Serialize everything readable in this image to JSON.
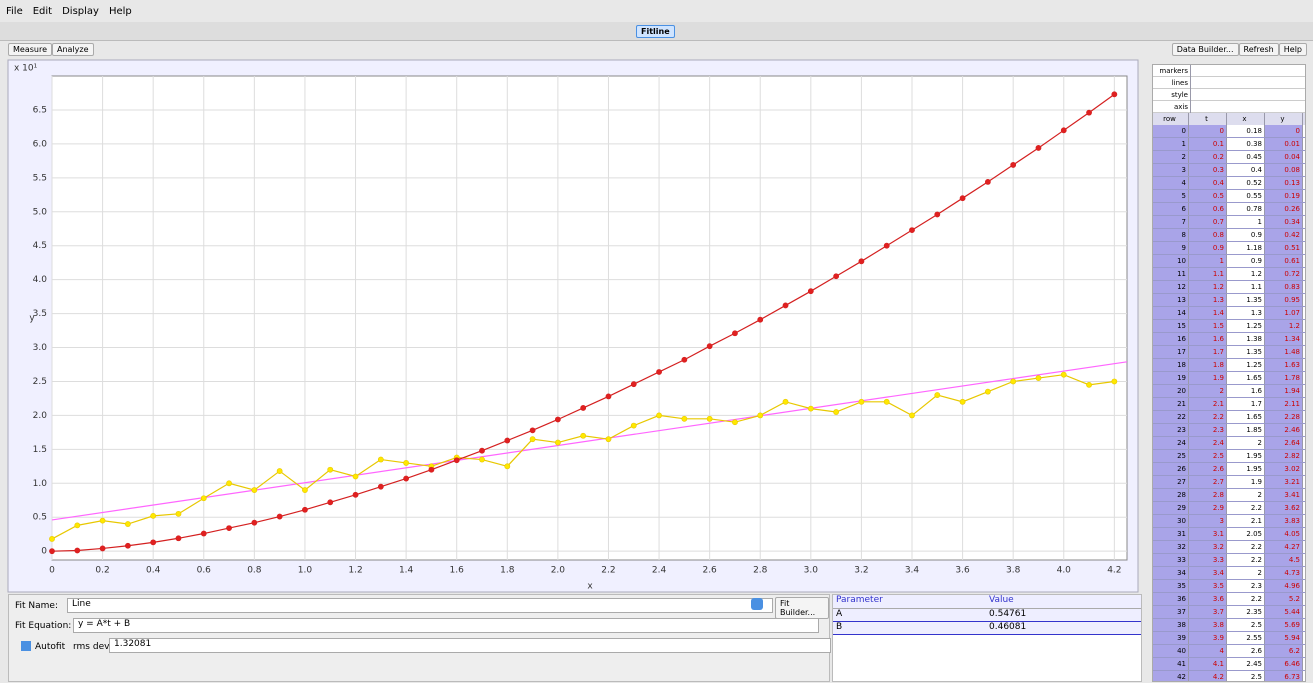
{
  "menu": [
    "File",
    "Edit",
    "Display",
    "Help"
  ],
  "tab": "Fitline",
  "toolbar": {
    "left": [
      "Measure",
      "Analyze"
    ],
    "right": [
      "Data Builder...",
      "Refresh",
      "Help"
    ]
  },
  "chart_data": {
    "type": "line",
    "xlabel": "x",
    "ylabel": "y",
    "exponent": "x 10¹",
    "xlim": [
      0,
      4.25
    ],
    "ylim": [
      -0.13,
      7.0
    ],
    "grid": true,
    "xticks": [
      0,
      0.2,
      0.4,
      0.6,
      0.8,
      {
        "value": 1,
        "label": "1.0"
      },
      1.2,
      1.4,
      1.6,
      1.8,
      {
        "value": 2,
        "label": "2.0"
      },
      2.2,
      2.4,
      2.6,
      2.8,
      {
        "value": 3,
        "label": "3.0"
      },
      3.2,
      3.4,
      3.6,
      3.8,
      {
        "value": 4,
        "label": "4.0"
      },
      4.2
    ],
    "yticks": [
      0,
      0.5,
      {
        "value": 1,
        "label": "1.0"
      },
      1.5,
      {
        "value": 2,
        "label": "2.0"
      },
      2.5,
      {
        "value": 3,
        "label": "3.0"
      },
      3.5,
      {
        "value": 4,
        "label": "4.0"
      },
      4.5,
      {
        "value": 5,
        "label": "5.0"
      },
      5.5,
      {
        "value": 6,
        "label": "6.0"
      },
      6.5
    ],
    "x": [
      0,
      0.1,
      0.2,
      0.3,
      0.4,
      0.5,
      0.6,
      0.7,
      0.8,
      0.9,
      1.0,
      1.1,
      1.2,
      1.3,
      1.4,
      1.5,
      1.6,
      1.7,
      1.8,
      1.9,
      2.0,
      2.1,
      2.2,
      2.3,
      2.4,
      2.5,
      2.6,
      2.7,
      2.8,
      2.9,
      3.0,
      3.1,
      3.2,
      3.3,
      3.4,
      3.5,
      3.6,
      3.7,
      3.8,
      3.9,
      4.0,
      4.1,
      4.2
    ],
    "series": [
      {
        "color": "#e8c800",
        "marker": "#ffe800",
        "values": [
          0.18,
          0.38,
          0.45,
          0.4,
          0.52,
          0.55,
          0.78,
          1.0,
          0.9,
          1.18,
          0.9,
          1.2,
          1.1,
          1.35,
          1.3,
          1.25,
          1.38,
          1.35,
          1.25,
          1.65,
          1.6,
          1.7,
          1.65,
          1.85,
          2.0,
          1.95,
          1.95,
          1.9,
          2.0,
          2.2,
          2.1,
          2.05,
          2.2,
          2.2,
          2.0,
          2.3,
          2.2,
          2.35,
          2.5,
          2.55,
          2.6,
          2.45,
          2.5
        ]
      },
      {
        "color": "#d42020",
        "marker": "#e02020",
        "values": [
          0,
          0.01,
          0.04,
          0.08,
          0.13,
          0.19,
          0.26,
          0.34,
          0.42,
          0.51,
          0.61,
          0.72,
          0.83,
          0.95,
          1.07,
          1.2,
          1.34,
          1.48,
          1.63,
          1.78,
          1.94,
          2.11,
          2.28,
          2.46,
          2.64,
          2.82,
          3.02,
          3.21,
          3.41,
          3.62,
          3.83,
          4.05,
          4.27,
          4.5,
          4.73,
          4.96,
          5.2,
          5.44,
          5.69,
          5.94,
          6.2,
          6.46,
          6.73
        ]
      }
    ],
    "fit_line": {
      "color": "#ff66ff",
      "x": [
        0,
        4.25
      ],
      "values": [
        0.46,
        2.79
      ]
    }
  },
  "fit": {
    "name_label": "Fit Name:",
    "name": "Line",
    "builder": "Fit Builder...",
    "equation_label": "Fit Equation:",
    "equation": "y = A*t + B",
    "autofit": "Autofit",
    "rms_label": "rms dev:",
    "rms": "1.32081",
    "params": {
      "header": [
        "Parameter",
        "Value"
      ],
      "rows": [
        [
          "A",
          "0.54761"
        ],
        [
          "B",
          "0.46081"
        ]
      ]
    }
  },
  "table": {
    "settings": [
      "markers",
      "lines",
      "style",
      "axis"
    ],
    "header": [
      "row",
      "t",
      "x",
      "y"
    ],
    "rows": [
      0,
      1,
      2,
      3,
      4,
      5,
      6,
      7,
      8,
      9,
      10,
      11,
      12,
      13,
      14,
      15,
      16,
      17,
      18,
      19,
      20,
      21,
      22,
      23,
      24,
      25,
      26,
      27,
      28,
      29,
      30,
      31,
      32,
      33,
      34,
      35,
      36,
      37,
      38,
      39,
      40,
      41,
      42
    ]
  }
}
